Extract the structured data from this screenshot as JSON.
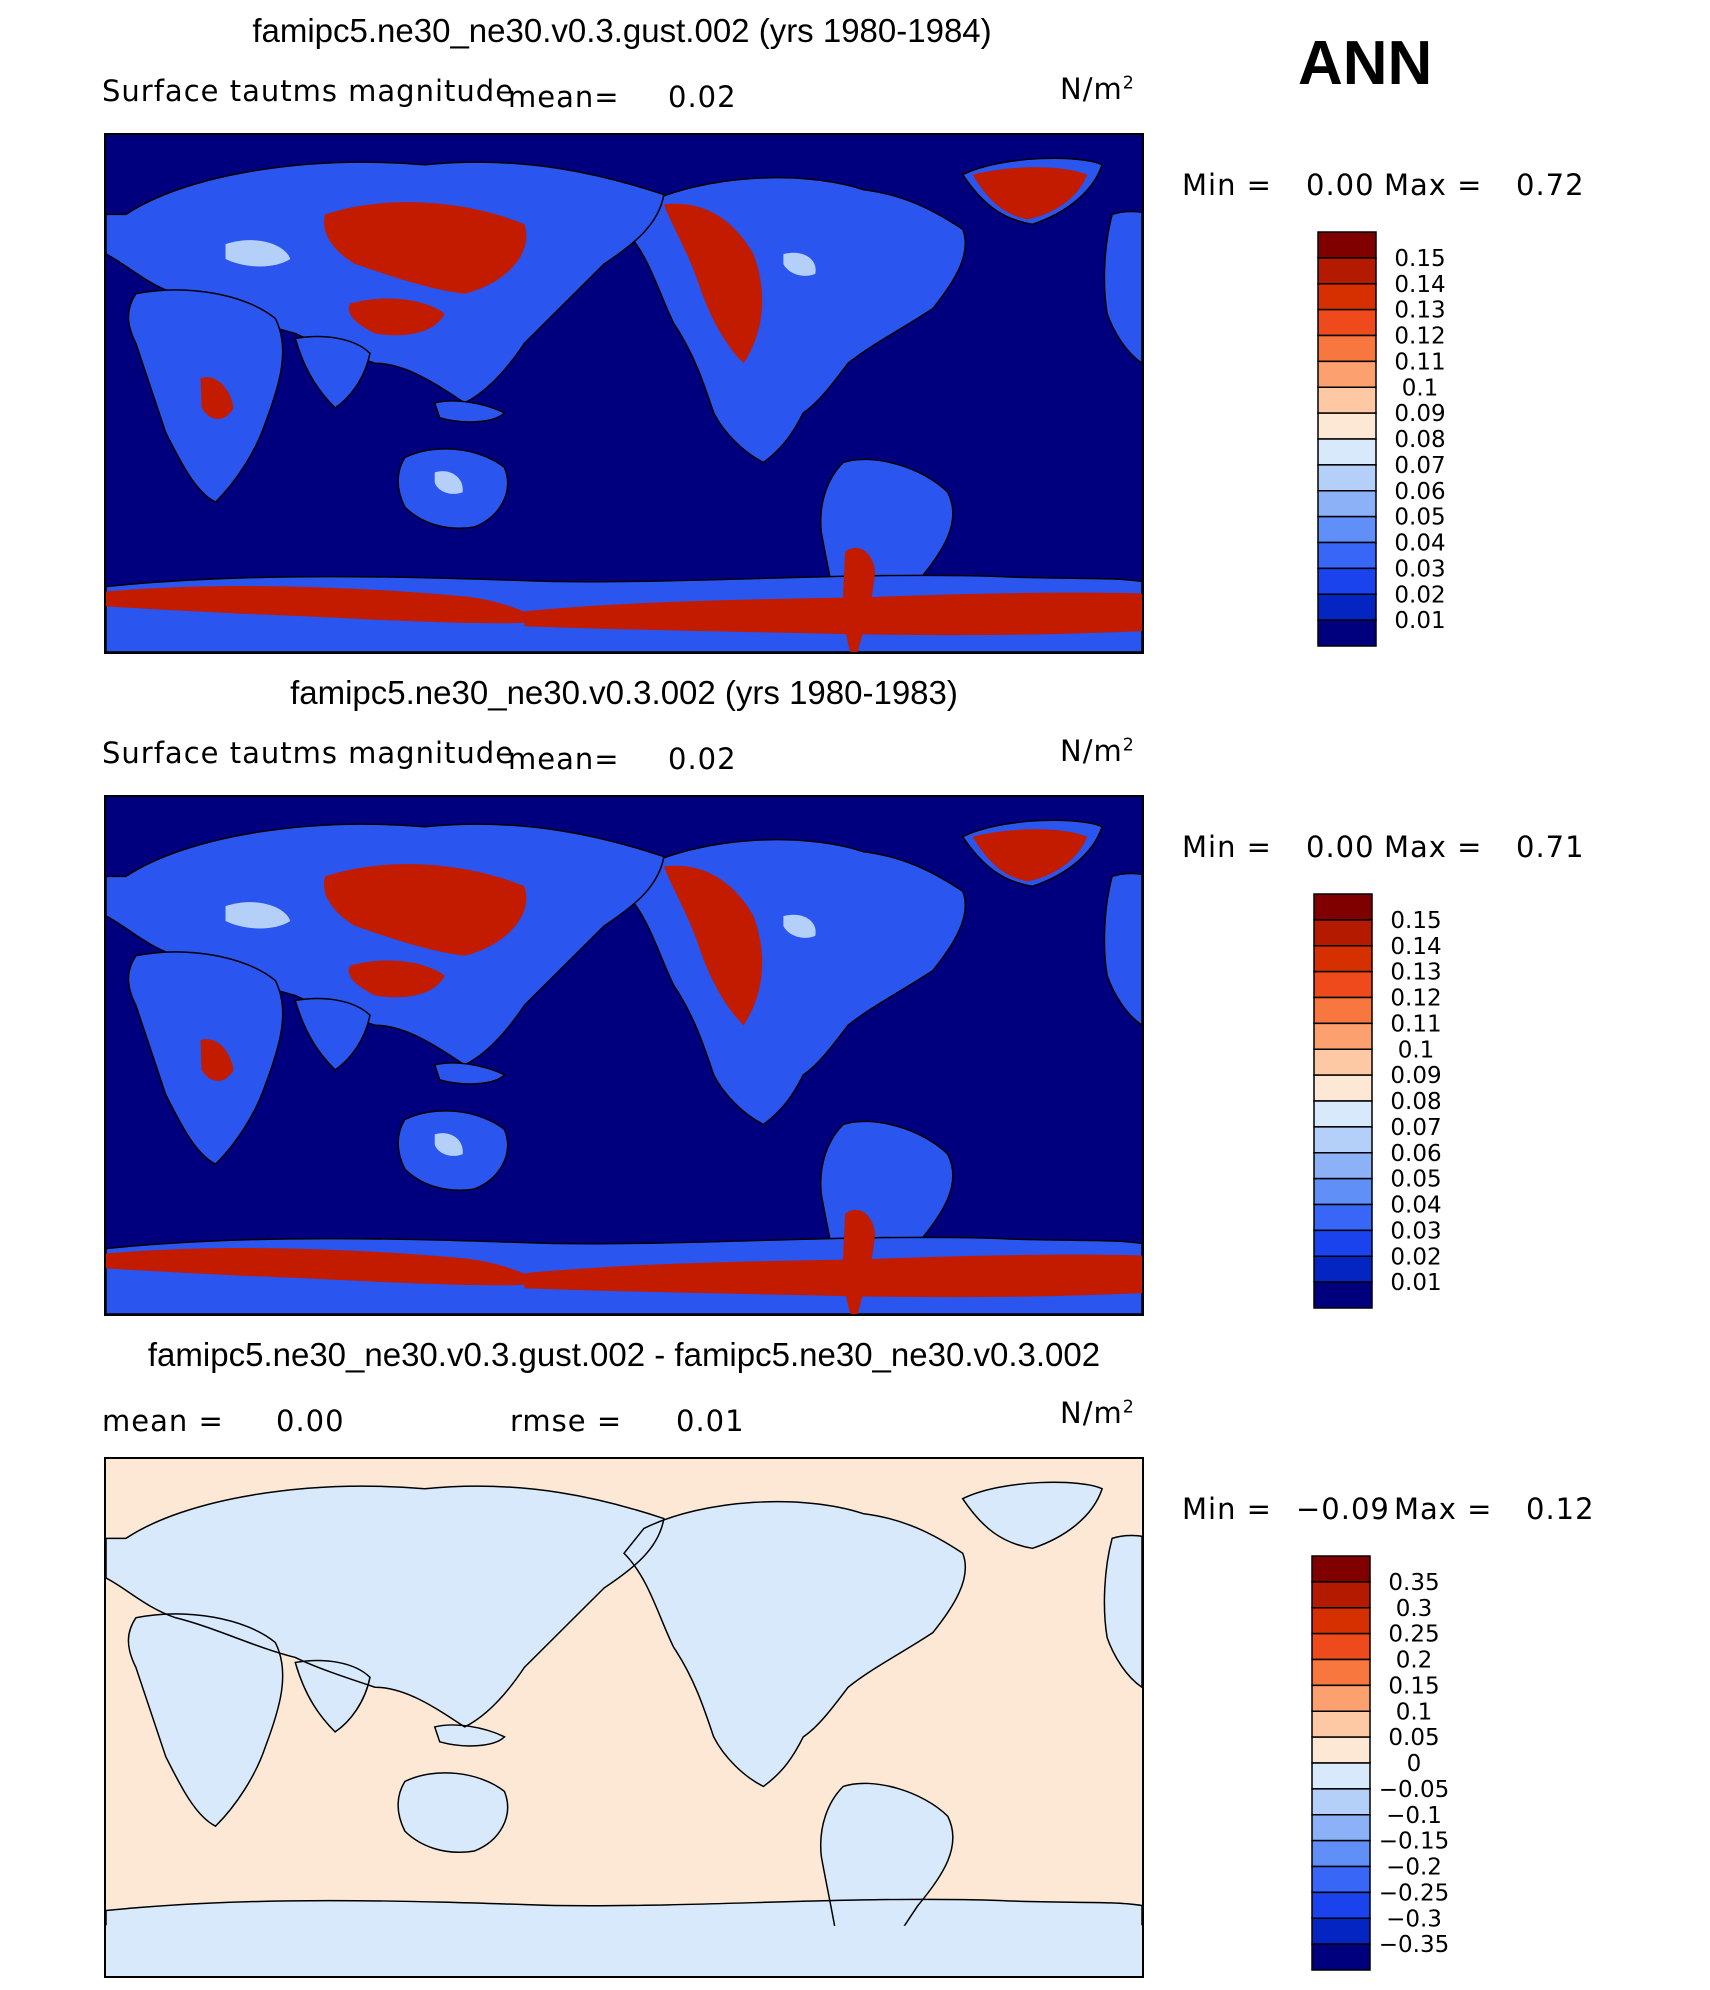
{
  "season": "ANN",
  "colors": {
    "ocean_top": "#00007f",
    "diff_bg": "#fde8d6",
    "diff_light_blue": "#d7e9fb"
  },
  "panels": [
    {
      "title": "famipc5.ne30_ne30.v0.3.gust.002 (yrs 1980-1984)",
      "left_label": "Surface tautms magnitude",
      "mean_label": "mean=",
      "mean_value": "0.02",
      "units": "N/m",
      "units_sup": "2",
      "min_label": "Min =",
      "min_value": "0.00",
      "max_label": "Max =",
      "max_value": "0.72"
    },
    {
      "title": "famipc5.ne30_ne30.v0.3.002 (yrs 1980-1983)",
      "left_label": "Surface tautms magnitude",
      "mean_label": "mean=",
      "mean_value": "0.02",
      "units": "N/m",
      "units_sup": "2",
      "min_label": "Min =",
      "min_value": "0.00",
      "max_label": "Max =",
      "max_value": "0.71"
    },
    {
      "title": "famipc5.ne30_ne30.v0.3.gust.002 - famipc5.ne30_ne30.v0.3.002",
      "left_label": "mean =",
      "left_value": "0.00",
      "rmse_label": "rmse =",
      "rmse_value": "0.01",
      "units": "N/m",
      "units_sup": "2",
      "min_label": "Min =",
      "min_value": "−0.09",
      "max_label": "Max =",
      "max_value": "0.12"
    }
  ],
  "chart_data": [
    {
      "type": "heatmap",
      "title": "famipc5.ne30_ne30.v0.3.gust.002 (yrs 1980-1984)",
      "field": "Surface tautms magnitude",
      "units": "N/m2",
      "mean": 0.02,
      "min": 0.0,
      "max": 0.72,
      "colorbar": {
        "levels": [
          "0.15",
          "0.14",
          "0.13",
          "0.12",
          "0.11",
          "0.1",
          "0.09",
          "0.08",
          "0.07",
          "0.06",
          "0.05",
          "0.04",
          "0.03",
          "0.02",
          "0.01"
        ],
        "colors": [
          "#800000",
          "#b31a00",
          "#d62f00",
          "#ee4a1b",
          "#f8773f",
          "#fca070",
          "#fdc8a4",
          "#fde8d6",
          "#d7e9fb",
          "#b4d0f8",
          "#8cb1f6",
          "#5f8ff7",
          "#3867f7",
          "#1a43ee",
          "#0525c2",
          "#00007f"
        ]
      }
    },
    {
      "type": "heatmap",
      "title": "famipc5.ne30_ne30.v0.3.002 (yrs 1980-1983)",
      "field": "Surface tautms magnitude",
      "units": "N/m2",
      "mean": 0.02,
      "min": 0.0,
      "max": 0.71,
      "colorbar": {
        "levels": [
          "0.15",
          "0.14",
          "0.13",
          "0.12",
          "0.11",
          "0.1",
          "0.09",
          "0.08",
          "0.07",
          "0.06",
          "0.05",
          "0.04",
          "0.03",
          "0.02",
          "0.01"
        ],
        "colors": [
          "#800000",
          "#b31a00",
          "#d62f00",
          "#ee4a1b",
          "#f8773f",
          "#fca070",
          "#fdc8a4",
          "#fde8d6",
          "#d7e9fb",
          "#b4d0f8",
          "#8cb1f6",
          "#5f8ff7",
          "#3867f7",
          "#1a43ee",
          "#0525c2",
          "#00007f"
        ]
      }
    },
    {
      "type": "heatmap",
      "title": "famipc5.ne30_ne30.v0.3.gust.002 - famipc5.ne30_ne30.v0.3.002",
      "units": "N/m2",
      "mean": 0.0,
      "rmse": 0.01,
      "min": -0.09,
      "max": 0.12,
      "colorbar": {
        "levels": [
          "0.35",
          "0.3",
          "0.25",
          "0.2",
          "0.15",
          "0.1",
          "0.05",
          "0",
          "−0.05",
          "−0.1",
          "−0.15",
          "−0.2",
          "−0.25",
          "−0.3",
          "−0.35"
        ],
        "colors": [
          "#800000",
          "#b31a00",
          "#d62f00",
          "#ee4a1b",
          "#f8773f",
          "#fca070",
          "#fdc8a4",
          "#fde8d6",
          "#d7e9fb",
          "#b4d0f8",
          "#8cb1f6",
          "#5f8ff7",
          "#3867f7",
          "#1a43ee",
          "#0525c2",
          "#00007f"
        ]
      }
    }
  ]
}
